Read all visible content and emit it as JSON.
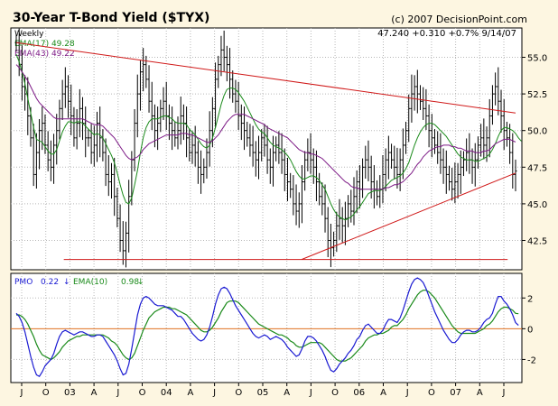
{
  "header": {
    "title": "30-Year T-Bond Yield ($TYX)",
    "credit": "(c) 2007 DecisionPoint.com",
    "period": "Weekly",
    "quote": "47.240  +0.310  +0.7%  9/14/07"
  },
  "legend": {
    "ema17": "EMA(17) 49.28",
    "ema43": "EMA(43) 49.22",
    "pmo_label": "PMO",
    "pmo_value": "0.22",
    "pmo_arrow": "↓",
    "pmo_ema": "EMA(10)",
    "pmo_ema_value": "0.98",
    "pmo_ema_arrow": "↓"
  },
  "colors": {
    "background": "#fdf6e1",
    "plot_background": "#ffffff",
    "grid": "#b8b8b8",
    "price_bars": "#000000",
    "ema17": "#1a8a1a",
    "ema43": "#7d1a86",
    "trendline": "#d01818",
    "pmo": "#1a1ad2",
    "pmo_ema": "#1a8a1a",
    "zero_line": "#e07020"
  },
  "chart_data": [
    {
      "type": "line",
      "title": "30-Year T-Bond Yield ($TYX)",
      "period": "Weekly",
      "x_range": [
        "2002-06",
        "2007-09"
      ],
      "x_tick_labels": [
        "J",
        "O",
        "03",
        "A",
        "J",
        "O",
        "04",
        "A",
        "J",
        "O",
        "05",
        "A",
        "J",
        "O",
        "06",
        "A",
        "J",
        "O",
        "07",
        "A",
        "J"
      ],
      "y_axis_side": "right",
      "ylim": [
        40.5,
        57.0
      ],
      "y_ticks": [
        42.5,
        45.0,
        47.5,
        50.0,
        52.5,
        55.0
      ],
      "grid": true,
      "series": [
        {
          "name": "$TYX",
          "style": "ohlc-bars",
          "color": "#000000",
          "values": [
            56.0,
            54.5,
            53.0,
            52.5,
            51.0,
            49.5,
            47.0,
            48.5,
            50.0,
            50.5,
            49.0,
            48.0,
            47.5,
            49.0,
            50.0,
            51.5,
            52.5,
            53.0,
            52.0,
            51.0,
            49.5,
            50.5,
            51.5,
            50.5,
            49.5,
            49.5,
            48.5,
            49.0,
            50.5,
            49.5,
            48.5,
            47.0,
            46.5,
            47.0,
            45.5,
            44.0,
            42.5,
            41.8,
            43.0,
            45.5,
            48.0,
            50.5,
            52.5,
            54.0,
            54.5,
            53.5,
            52.0,
            51.0,
            50.0,
            50.5,
            51.5,
            52.0,
            51.0,
            50.5,
            50.0,
            49.5,
            50.0,
            51.0,
            50.5,
            49.5,
            48.5,
            49.0,
            48.5,
            47.5,
            47.0,
            47.5,
            48.5,
            50.0,
            51.5,
            53.5,
            54.5,
            55.5,
            55.0,
            54.5,
            53.5,
            52.5,
            52.0,
            51.0,
            50.5,
            50.0,
            49.5,
            49.0,
            48.5,
            48.0,
            48.5,
            49.5,
            49.0,
            48.0,
            47.5,
            48.5,
            49.0,
            48.5,
            48.0,
            47.0,
            46.5,
            46.0,
            45.0,
            44.5,
            45.0,
            46.5,
            48.0,
            48.5,
            48.0,
            47.5,
            46.5,
            45.5,
            45.0,
            44.0,
            42.5,
            42.0,
            42.5,
            43.5,
            44.0,
            43.5,
            44.0,
            45.0,
            44.5,
            45.5,
            46.5,
            46.0,
            47.5,
            48.0,
            47.5,
            46.5,
            46.0,
            45.5,
            46.0,
            47.0,
            48.0,
            48.5,
            48.0,
            47.5,
            47.0,
            48.0,
            49.0,
            50.0,
            51.5,
            52.5,
            53.0,
            52.5,
            52.0,
            51.5,
            51.0,
            50.0,
            49.5,
            49.0,
            48.5,
            48.0,
            47.5,
            47.0,
            46.5,
            46.0,
            46.5,
            47.0,
            47.5,
            48.0,
            48.5,
            48.0,
            47.5,
            48.0,
            49.0,
            49.5,
            49.0,
            49.5,
            51.0,
            52.5,
            53.0,
            52.0,
            51.0,
            50.0,
            49.5,
            48.5,
            47.0,
            47.24
          ]
        },
        {
          "name": "EMA(17)",
          "color": "#1a8a1a",
          "values": [
            55.2,
            54.7,
            54.0,
            53.2,
            52.2,
            51.2,
            50.2,
            49.4,
            49.3,
            49.2,
            48.9,
            48.6,
            48.4,
            48.4,
            48.7,
            49.3,
            49.9,
            50.3,
            50.6,
            50.6,
            50.5,
            50.6,
            50.6,
            50.5,
            50.3,
            50.1,
            49.9,
            49.7,
            49.8,
            49.7,
            49.5,
            49.1,
            48.7,
            48.3,
            47.8,
            47.1,
            46.3,
            45.6,
            45.1,
            45.0,
            45.4,
            46.3,
            47.3,
            48.5,
            49.5,
            50.2,
            50.6,
            50.8,
            50.8,
            50.8,
            50.9,
            51.0,
            51.0,
            50.9,
            50.8,
            50.6,
            50.5,
            50.5,
            50.5,
            50.4,
            50.1,
            49.9,
            49.7,
            49.4,
            49.1,
            48.9,
            48.8,
            49.0,
            49.5,
            50.2,
            51.0,
            51.8,
            52.4,
            52.8,
            52.9,
            52.9,
            52.8,
            52.6,
            52.3,
            52.0,
            51.6,
            51.2,
            50.8,
            50.4,
            50.1,
            49.9,
            49.8,
            49.5,
            49.2,
            49.0,
            48.9,
            48.8,
            48.7,
            48.5,
            48.3,
            48.0,
            47.6,
            47.2,
            46.9,
            46.7,
            46.7,
            46.8,
            46.9,
            46.9,
            46.8,
            46.6,
            46.3,
            46.0,
            45.5,
            45.0,
            44.6,
            44.3,
            44.1,
            44.0,
            43.9,
            44.0,
            44.1,
            44.3,
            44.6,
            44.8,
            45.1,
            45.4,
            45.7,
            45.8,
            45.9,
            45.9,
            45.9,
            46.0,
            46.2,
            46.4,
            46.6,
            46.7,
            46.8,
            46.9,
            47.1,
            47.4,
            47.8,
            48.4,
            49.0,
            49.5,
            49.9,
            50.2,
            50.4,
            50.5,
            50.5,
            50.4,
            50.2,
            50.0,
            49.8,
            49.6,
            49.3,
            49.0,
            48.7,
            48.4,
            48.2,
            48.1,
            48.0,
            48.0,
            48.0,
            47.9,
            47.9,
            48.0,
            48.1,
            48.2,
            48.4,
            48.7,
            49.1,
            49.6,
            50.0,
            50.2,
            50.2,
            50.1,
            50.0,
            49.8,
            49.5,
            49.28
          ]
        },
        {
          "name": "EMA(43)",
          "color": "#7d1a86",
          "values": [
            54.5,
            54.3,
            54.0,
            53.7,
            53.4,
            53.0,
            52.6,
            52.2,
            51.9,
            51.7,
            51.5,
            51.3,
            51.1,
            50.9,
            50.8,
            50.8,
            50.8,
            50.8,
            50.8,
            50.8,
            50.8,
            50.8,
            50.8,
            50.8,
            50.7,
            50.6,
            50.5,
            50.4,
            50.4,
            50.4,
            50.3,
            50.1,
            49.9,
            49.7,
            49.5,
            49.2,
            48.9,
            48.6,
            48.3,
            48.1,
            48.0,
            48.1,
            48.2,
            48.4,
            48.7,
            48.9,
            49.1,
            49.2,
            49.3,
            49.4,
            49.5,
            49.6,
            49.7,
            49.7,
            49.7,
            49.7,
            49.7,
            49.8,
            49.8,
            49.8,
            49.7,
            49.7,
            49.6,
            49.5,
            49.4,
            49.3,
            49.2,
            49.2,
            49.3,
            49.5,
            49.7,
            50.0,
            50.3,
            50.6,
            50.8,
            51.0,
            51.1,
            51.1,
            51.1,
            51.1,
            51.0,
            50.9,
            50.8,
            50.7,
            50.6,
            50.5,
            50.4,
            50.2,
            50.1,
            50.0,
            49.9,
            49.8,
            49.7,
            49.6,
            49.5,
            49.3,
            49.1,
            48.9,
            48.7,
            48.6,
            48.5,
            48.5,
            48.4,
            48.4,
            48.3,
            48.2,
            48.1,
            47.9,
            47.7,
            47.5,
            47.3,
            47.1,
            46.9,
            46.7,
            46.5,
            46.4,
            46.2,
            46.1,
            46.1,
            46.0,
            46.0,
            46.0,
            46.0,
            46.0,
            46.0,
            46.0,
            46.0,
            46.0,
            46.1,
            46.1,
            46.2,
            46.3,
            46.3,
            46.4,
            46.5,
            46.7,
            46.9,
            47.1,
            47.4,
            47.7,
            47.9,
            48.2,
            48.4,
            48.6,
            48.7,
            48.8,
            48.9,
            48.9,
            49.0,
            49.0,
            49.0,
            48.9,
            48.9,
            48.8,
            48.8,
            48.7,
            48.6,
            48.6,
            48.6,
            48.5,
            48.5,
            48.5,
            48.6,
            48.6,
            48.7,
            48.9,
            49.1,
            49.2,
            49.3,
            49.4,
            49.4,
            49.4,
            49.3,
            49.22
          ]
        }
      ],
      "trendlines": [
        {
          "from": [
            "2002-06",
            56.0
          ],
          "to": [
            "2007-09",
            51.2
          ]
        },
        {
          "from": [
            "2005-06",
            41.2
          ],
          "to": [
            "2007-09",
            47.1
          ]
        },
        {
          "from": [
            "2002-12",
            41.2
          ],
          "to": [
            "2007-08",
            41.2
          ]
        }
      ]
    },
    {
      "type": "line",
      "title": "PMO",
      "ylim": [
        -3.5,
        3.6
      ],
      "y_ticks": [
        -2,
        0,
        2
      ],
      "zero_line": true,
      "series": [
        {
          "name": "PMO",
          "color": "#1a1ad2",
          "values": [
            1.0,
            0.8,
            0.4,
            -0.2,
            -1.0,
            -1.8,
            -2.5,
            -3.0,
            -3.1,
            -2.8,
            -2.4,
            -2.2,
            -2.0,
            -1.6,
            -1.0,
            -0.5,
            -0.2,
            -0.1,
            -0.2,
            -0.3,
            -0.4,
            -0.3,
            -0.2,
            -0.2,
            -0.3,
            -0.4,
            -0.5,
            -0.5,
            -0.4,
            -0.4,
            -0.5,
            -0.8,
            -1.1,
            -1.4,
            -1.7,
            -2.1,
            -2.6,
            -3.0,
            -2.9,
            -2.3,
            -1.3,
            -0.2,
            0.9,
            1.6,
            2.0,
            2.1,
            2.0,
            1.8,
            1.6,
            1.5,
            1.5,
            1.5,
            1.4,
            1.3,
            1.2,
            1.0,
            0.8,
            0.8,
            0.6,
            0.3,
            0.0,
            -0.3,
            -0.5,
            -0.7,
            -0.8,
            -0.7,
            -0.4,
            0.1,
            0.8,
            1.6,
            2.2,
            2.6,
            2.7,
            2.6,
            2.3,
            1.9,
            1.5,
            1.2,
            0.9,
            0.6,
            0.3,
            0.0,
            -0.3,
            -0.5,
            -0.6,
            -0.5,
            -0.4,
            -0.5,
            -0.7,
            -0.6,
            -0.5,
            -0.6,
            -0.7,
            -0.9,
            -1.2,
            -1.4,
            -1.6,
            -1.8,
            -1.7,
            -1.3,
            -0.8,
            -0.5,
            -0.5,
            -0.6,
            -0.8,
            -1.1,
            -1.4,
            -1.8,
            -2.3,
            -2.7,
            -2.8,
            -2.6,
            -2.3,
            -2.1,
            -1.9,
            -1.6,
            -1.4,
            -1.1,
            -0.7,
            -0.5,
            -0.1,
            0.2,
            0.3,
            0.1,
            -0.1,
            -0.3,
            -0.3,
            -0.1,
            0.3,
            0.6,
            0.6,
            0.5,
            0.4,
            0.7,
            1.2,
            1.8,
            2.4,
            2.9,
            3.2,
            3.3,
            3.2,
            3.0,
            2.6,
            2.1,
            1.6,
            1.1,
            0.7,
            0.3,
            -0.1,
            -0.4,
            -0.7,
            -0.9,
            -0.9,
            -0.7,
            -0.4,
            -0.2,
            -0.1,
            -0.1,
            -0.2,
            -0.2,
            -0.1,
            0.1,
            0.4,
            0.6,
            0.7,
            1.0,
            1.6,
            2.1,
            2.1,
            1.8,
            1.6,
            1.3,
            0.9,
            0.4,
            0.22
          ]
        },
        {
          "name": "EMA(10)",
          "color": "#1a8a1a",
          "values": [
            0.9,
            0.9,
            0.8,
            0.6,
            0.3,
            -0.1,
            -0.5,
            -1.0,
            -1.4,
            -1.7,
            -1.8,
            -1.9,
            -2.0,
            -1.9,
            -1.7,
            -1.5,
            -1.2,
            -1.0,
            -0.8,
            -0.7,
            -0.6,
            -0.5,
            -0.5,
            -0.4,
            -0.4,
            -0.4,
            -0.4,
            -0.4,
            -0.4,
            -0.4,
            -0.4,
            -0.5,
            -0.6,
            -0.8,
            -0.9,
            -1.1,
            -1.4,
            -1.7,
            -1.9,
            -2.0,
            -1.9,
            -1.6,
            -1.1,
            -0.6,
            -0.1,
            0.3,
            0.7,
            0.9,
            1.1,
            1.2,
            1.3,
            1.4,
            1.4,
            1.4,
            1.3,
            1.3,
            1.2,
            1.1,
            1.0,
            0.9,
            0.7,
            0.5,
            0.3,
            0.1,
            -0.1,
            -0.2,
            -0.2,
            -0.1,
            0.1,
            0.4,
            0.7,
            1.1,
            1.4,
            1.7,
            1.8,
            1.8,
            1.8,
            1.7,
            1.5,
            1.3,
            1.1,
            0.9,
            0.7,
            0.5,
            0.3,
            0.2,
            0.1,
            0.0,
            -0.1,
            -0.2,
            -0.3,
            -0.4,
            -0.4,
            -0.5,
            -0.6,
            -0.8,
            -0.9,
            -1.1,
            -1.2,
            -1.2,
            -1.1,
            -1.0,
            -0.9,
            -0.9,
            -0.9,
            -0.9,
            -1.0,
            -1.2,
            -1.4,
            -1.6,
            -1.8,
            -2.0,
            -2.1,
            -2.1,
            -2.1,
            -2.0,
            -1.9,
            -1.7,
            -1.5,
            -1.3,
            -1.1,
            -0.8,
            -0.6,
            -0.5,
            -0.4,
            -0.4,
            -0.3,
            -0.3,
            -0.2,
            -0.1,
            0.1,
            0.2,
            0.2,
            0.4,
            0.6,
            0.9,
            1.3,
            1.6,
            1.9,
            2.2,
            2.4,
            2.5,
            2.5,
            2.4,
            2.2,
            2.0,
            1.7,
            1.4,
            1.1,
            0.8,
            0.5,
            0.2,
            0.0,
            -0.2,
            -0.3,
            -0.3,
            -0.3,
            -0.3,
            -0.3,
            -0.3,
            -0.2,
            -0.1,
            0.0,
            0.2,
            0.3,
            0.5,
            0.8,
            1.1,
            1.3,
            1.4,
            1.4,
            1.3,
            1.2,
            1.0,
            0.98
          ]
        }
      ]
    }
  ]
}
